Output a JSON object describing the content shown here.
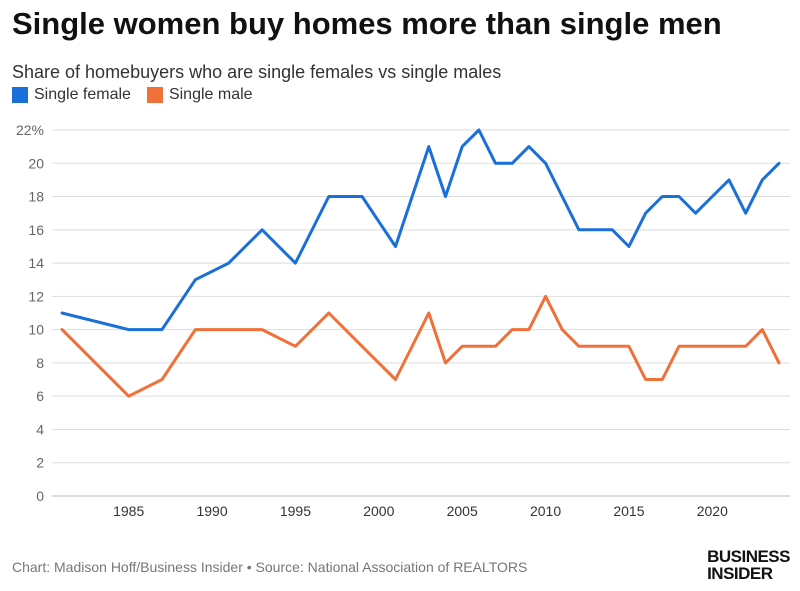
{
  "chart_data": {
    "type": "line",
    "title": "Single women buy homes more than single men",
    "subtitle": "Share of homebuyers who are single females vs single males",
    "xlabel": "",
    "ylabel": "",
    "xlim": [
      1981,
      2024
    ],
    "ylim": [
      0,
      22
    ],
    "x_ticks": [
      1985,
      1990,
      1995,
      2000,
      2005,
      2010,
      2015,
      2020
    ],
    "x_tick_labels": [
      "1985",
      "1990",
      "1995",
      "2000",
      "2005",
      "2010",
      "2015",
      "2020"
    ],
    "y_ticks": [
      0,
      2,
      4,
      6,
      8,
      10,
      12,
      14,
      16,
      18,
      20,
      22
    ],
    "y_tick_labels": [
      "0",
      "2",
      "4",
      "6",
      "8",
      "10",
      "12",
      "14",
      "16",
      "18",
      "20",
      "22%"
    ],
    "grid": "horizontal",
    "legend_position": "top-left",
    "series": [
      {
        "name": "Single female",
        "color": "#1a6fd9",
        "x": [
          1981,
          1985,
          1987,
          1989,
          1991,
          1993,
          1995,
          1997,
          1999,
          2001,
          2003,
          2004,
          2005,
          2006,
          2007,
          2008,
          2009,
          2010,
          2011,
          2012,
          2013,
          2014,
          2015,
          2016,
          2017,
          2018,
          2019,
          2020,
          2021,
          2022,
          2023,
          2024
        ],
        "values": [
          11,
          10,
          10,
          13,
          14,
          16,
          14,
          18,
          18,
          15,
          21,
          18,
          21,
          22,
          20,
          20,
          21,
          20,
          18,
          16,
          16,
          16,
          15,
          17,
          18,
          18,
          17,
          18,
          19,
          17,
          19,
          20
        ]
      },
      {
        "name": "Single male",
        "color": "#f0703a",
        "x": [
          1981,
          1985,
          1987,
          1989,
          1991,
          1993,
          1995,
          1997,
          1999,
          2001,
          2003,
          2004,
          2005,
          2006,
          2007,
          2008,
          2009,
          2010,
          2011,
          2012,
          2013,
          2014,
          2015,
          2016,
          2017,
          2018,
          2019,
          2020,
          2021,
          2022,
          2023,
          2024
        ],
        "values": [
          10,
          6,
          7,
          10,
          10,
          10,
          9,
          11,
          9,
          7,
          11,
          8,
          9,
          9,
          9,
          10,
          10,
          12,
          10,
          9,
          9,
          9,
          9,
          7,
          7,
          9,
          9,
          9,
          9,
          9,
          10,
          8
        ]
      }
    ]
  },
  "footer": {
    "source": "Chart: Madison Hoff/Business Insider • Source: National Association of REALTORS",
    "logo_line1": "BUSINESS",
    "logo_line2": "INSIDER"
  }
}
